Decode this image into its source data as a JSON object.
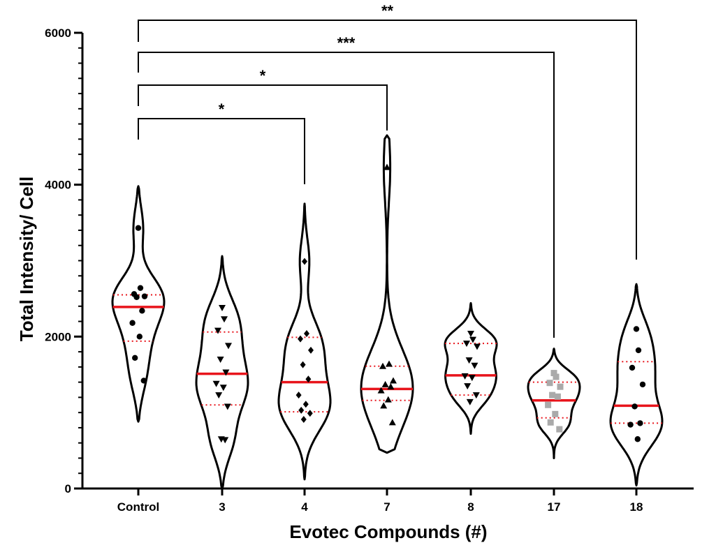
{
  "chart_data": {
    "type": "violin",
    "xlabel": "Evotec Compounds (#)",
    "ylabel": "Total Intensity/ Cell",
    "ylim": [
      0,
      6000
    ],
    "yticks": [
      "0",
      "2000",
      "4000",
      "6000"
    ],
    "grid": false,
    "legend": "none",
    "colors": {
      "median": "#e8141b",
      "quartile": "#e8141b",
      "outline": "#000000",
      "square_marker": "#aaaaaa"
    },
    "categories": [
      "Control",
      "3",
      "4",
      "7",
      "8",
      "17",
      "18"
    ],
    "series": [
      {
        "category": "Control",
        "marker": "circle",
        "values": [
          3430,
          2640,
          2560,
          2530,
          2520,
          2340,
          2180,
          2000,
          1720,
          1420
        ],
        "median": 2390,
        "q1": 1940,
        "q3": 2550,
        "range": [
          880,
          3980
        ]
      },
      {
        "category": "3",
        "marker": "triangle-down",
        "values": [
          2380,
          2230,
          2080,
          1880,
          1700,
          1530,
          1380,
          1330,
          1230,
          1080,
          650,
          640
        ],
        "median": 1510,
        "q1": 1100,
        "q3": 2060,
        "range": [
          0,
          3060
        ]
      },
      {
        "category": "4",
        "marker": "diamond",
        "values": [
          2990,
          2040,
          1970,
          1820,
          1630,
          1440,
          1230,
          1110,
          1030,
          990,
          910
        ],
        "median": 1400,
        "q1": 1010,
        "q3": 1990,
        "range": [
          120,
          3750
        ]
      },
      {
        "category": "7",
        "marker": "triangle-up",
        "values": [
          4230,
          1640,
          1610,
          1420,
          1370,
          1340,
          1290,
          1170,
          1090,
          870
        ],
        "median": 1310,
        "q1": 1160,
        "q3": 1610,
        "range": [
          470,
          4650
        ]
      },
      {
        "category": "8",
        "marker": "triangle-down",
        "values": [
          2040,
          1960,
          1910,
          1870,
          1690,
          1620,
          1480,
          1460,
          1350,
          1230,
          1140
        ],
        "median": 1490,
        "q1": 1230,
        "q3": 1910,
        "range": [
          720,
          2440
        ]
      },
      {
        "category": "17",
        "marker": "square",
        "values": [
          1520,
          1470,
          1390,
          1340,
          1230,
          1210,
          1100,
          980,
          870,
          780
        ],
        "median": 1160,
        "q1": 930,
        "q3": 1400,
        "range": [
          400,
          1840
        ]
      },
      {
        "category": "18",
        "marker": "circle",
        "values": [
          2100,
          1820,
          1590,
          1370,
          1080,
          860,
          840,
          650
        ],
        "median": 1090,
        "q1": 860,
        "q3": 1670,
        "range": [
          40,
          2690
        ]
      }
    ],
    "comparisons": [
      {
        "from": "Control",
        "to": "4",
        "label": "*"
      },
      {
        "from": "Control",
        "to": "7",
        "label": "*"
      },
      {
        "from": "Control",
        "to": "17",
        "label": "***"
      },
      {
        "from": "Control",
        "to": "18",
        "label": "**"
      }
    ]
  }
}
